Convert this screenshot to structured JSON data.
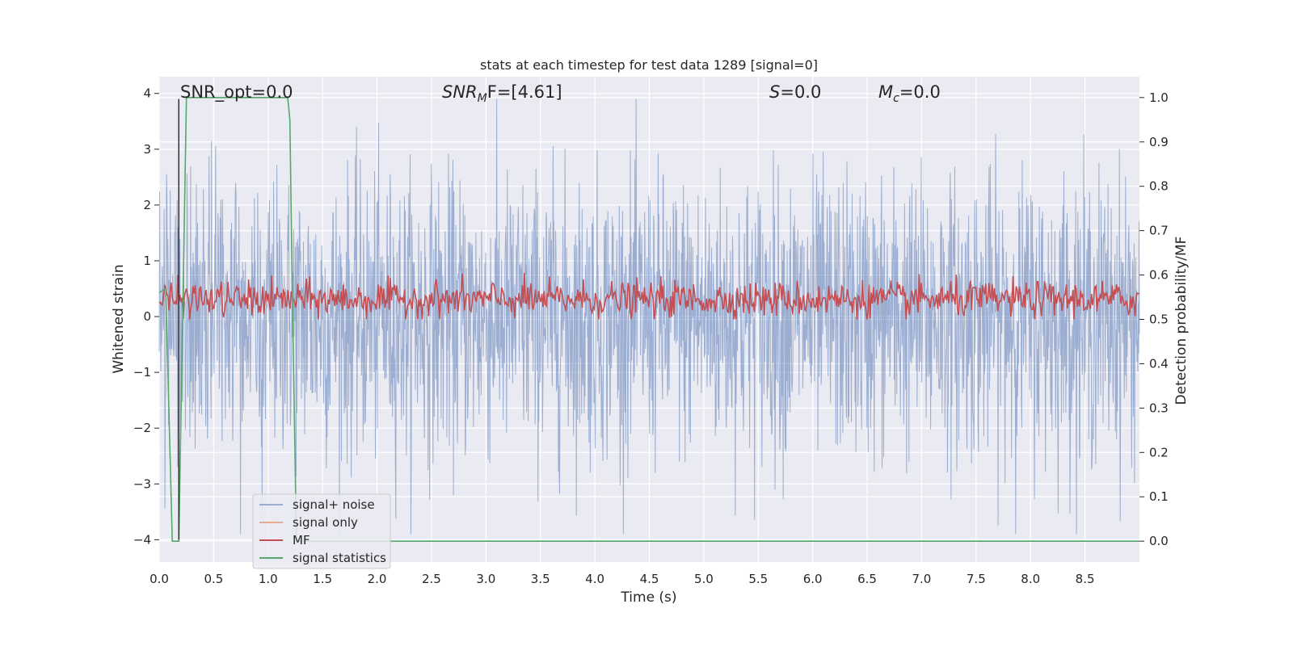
{
  "chart_data": {
    "type": "line",
    "title": "stats at each timestep for test data 1289 [signal=0]",
    "xlabel": "Time (s)",
    "ylabel": "Whitened strain",
    "y2label": "Detection probability/MF",
    "xlim": [
      0.0,
      9.0
    ],
    "ylim": [
      -4.4,
      4.3
    ],
    "y2lim": [
      -0.047,
      1.047
    ],
    "xticks": [
      "0.0",
      "0.5",
      "1.0",
      "1.5",
      "2.0",
      "2.5",
      "3.0",
      "3.5",
      "4.0",
      "4.5",
      "5.0",
      "5.5",
      "6.0",
      "6.5",
      "7.0",
      "7.5",
      "8.0",
      "8.5"
    ],
    "yticks": [
      "4",
      "3",
      "2",
      "1",
      "0",
      "−1",
      "−2",
      "−3",
      "−4"
    ],
    "y2ticks": [
      "1.0",
      "0.9",
      "0.8",
      "0.7",
      "0.6",
      "0.5",
      "0.4",
      "0.3",
      "0.2",
      "0.1",
      "0.0"
    ],
    "grid": true,
    "legend_position": "lower-left",
    "annotations": {
      "snr_opt": "SNR_opt=0.0",
      "snr_mf_base": "SNR",
      "snr_mf_sub": "M",
      "snr_mf_rest": "F=[4.61]",
      "s_label": "S",
      "s_value": "=0.0",
      "mc_base": "M",
      "mc_sub": "c",
      "mc_value": "=0.0"
    },
    "series": [
      {
        "name": "signal+ noise",
        "color": "#4c72b0",
        "axis": "left",
        "description_range": [
          -4.0,
          4.0
        ]
      },
      {
        "name": "signal only",
        "color": "#dd8452",
        "axis": "left",
        "values": []
      },
      {
        "name": "MF",
        "color": "#c44e52",
        "axis": "right",
        "typical_range": [
          0.5,
          0.62
        ]
      },
      {
        "name": "signal statistics",
        "color": "#55a868",
        "axis": "right",
        "x": [
          0.0,
          0.06,
          0.12,
          0.18,
          0.25,
          1.18,
          1.2,
          1.22,
          1.26,
          9.0
        ],
        "values": [
          0.56,
          0.57,
          0.0,
          0.0,
          1.0,
          1.0,
          0.95,
          0.6,
          0.0,
          0.0
        ]
      }
    ],
    "marker_line": {
      "x": 0.18,
      "y_top": 3.9,
      "y_bottom": -4.0,
      "color": "#333333"
    }
  }
}
